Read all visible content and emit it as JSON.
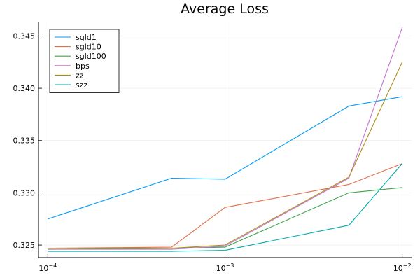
{
  "chart_data": {
    "type": "line",
    "title": "Average Loss",
    "xlabel": "",
    "ylabel": "",
    "xscale": "log10",
    "xlim": [
      0.0001,
      0.01
    ],
    "ylim": [
      0.3238,
      0.3463
    ],
    "x": [
      0.0001,
      0.0005,
      0.001,
      0.005,
      0.01
    ],
    "x_ticks": [
      0.0001,
      0.001,
      0.01
    ],
    "x_tick_labels": [
      {
        "base": "10",
        "exp": "−4"
      },
      {
        "base": "10",
        "exp": "−3"
      },
      {
        "base": "10",
        "exp": "−2"
      }
    ],
    "y_ticks": [
      0.325,
      0.33,
      0.335,
      0.34,
      0.345
    ],
    "y_tick_labels": [
      "0.325",
      "0.330",
      "0.335",
      "0.340",
      "0.345"
    ],
    "grid": true,
    "legend_position": "top-left",
    "series": [
      {
        "name": "sgld1",
        "color": "#009AFA",
        "values": [
          0.3275,
          0.3314,
          0.3313,
          0.3383,
          0.3392
        ]
      },
      {
        "name": "sgld10",
        "color": "#E36F47",
        "values": [
          0.3247,
          0.3248,
          0.3286,
          0.3308,
          0.3328
        ]
      },
      {
        "name": "sgld100",
        "color": "#3EA44E",
        "values": [
          0.3246,
          0.3247,
          0.3248,
          0.33,
          0.3305
        ]
      },
      {
        "name": "bps",
        "color": "#C371D2",
        "values": [
          0.3246,
          0.3246,
          0.3249,
          0.3314,
          0.3458
        ]
      },
      {
        "name": "zz",
        "color": "#AC8E18",
        "values": [
          0.3247,
          0.3247,
          0.325,
          0.3315,
          0.3425
        ]
      },
      {
        "name": "szz",
        "color": "#00A9AD",
        "values": [
          0.3244,
          0.3244,
          0.3245,
          0.3269,
          0.3328
        ]
      }
    ]
  }
}
